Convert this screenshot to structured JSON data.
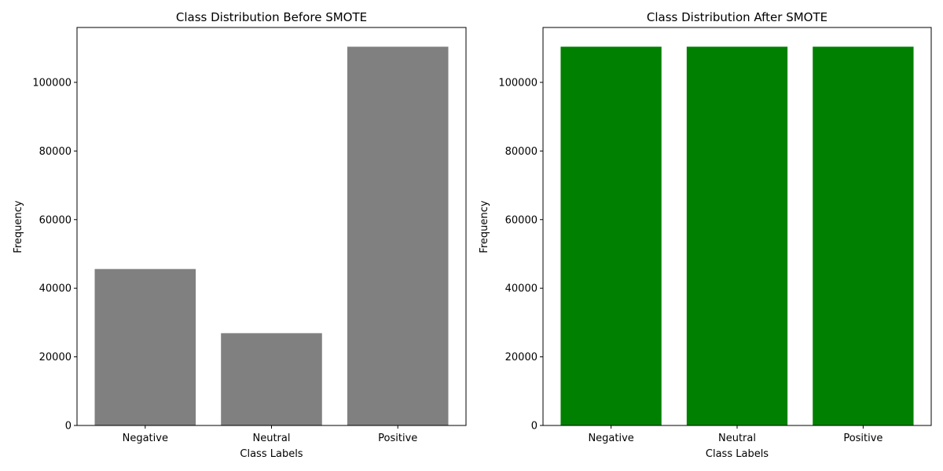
{
  "chart_data": [
    {
      "type": "bar",
      "title": "Class Distribution Before SMOTE",
      "xlabel": "Class Labels",
      "ylabel": "Frequency",
      "categories": [
        "Negative",
        "Neutral",
        "Positive"
      ],
      "values": [
        45600,
        26900,
        110400
      ],
      "ylim": [
        0,
        116000
      ],
      "yticks": [
        0,
        20000,
        40000,
        60000,
        80000,
        100000
      ],
      "color": "#808080",
      "grid": false,
      "legend": "none"
    },
    {
      "type": "bar",
      "title": "Class Distribution After SMOTE",
      "xlabel": "Class Labels",
      "ylabel": "Frequency",
      "categories": [
        "Negative",
        "Neutral",
        "Positive"
      ],
      "values": [
        110400,
        110400,
        110400
      ],
      "ylim": [
        0,
        116000
      ],
      "yticks": [
        0,
        20000,
        40000,
        60000,
        80000,
        100000
      ],
      "color": "#008000",
      "grid": false,
      "legend": "none"
    }
  ]
}
